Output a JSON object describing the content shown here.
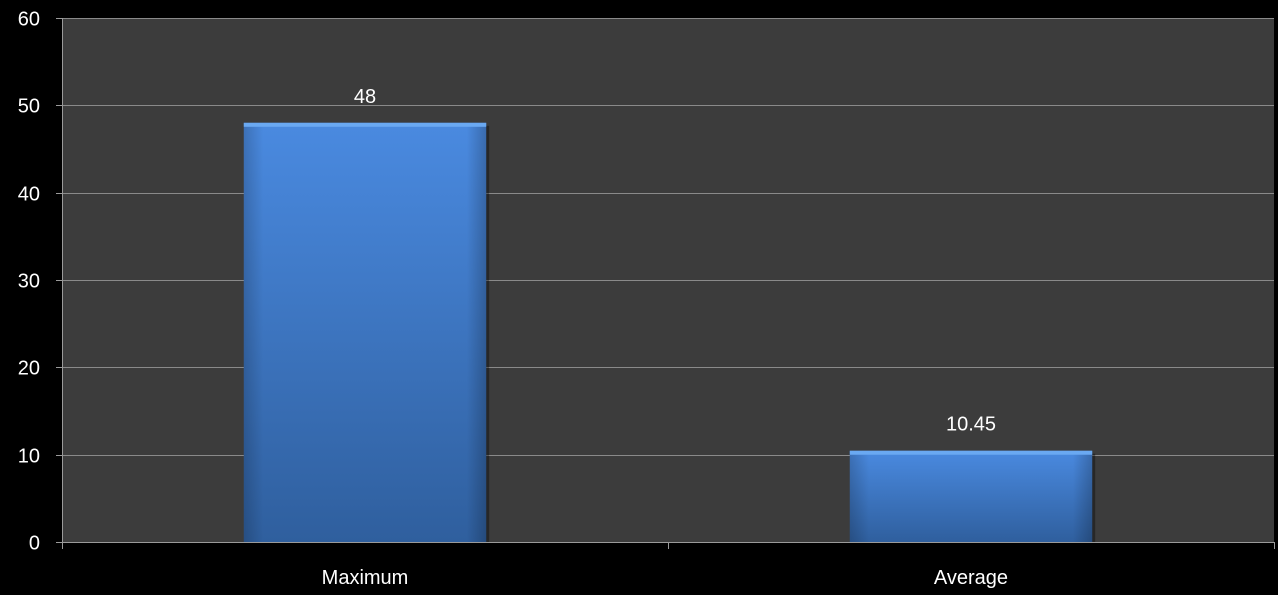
{
  "chart_data": {
    "type": "bar",
    "title": "",
    "xlabel": "",
    "ylabel": "",
    "categories": [
      "Maximum",
      "Average"
    ],
    "values": [
      48,
      10.45
    ],
    "value_labels": [
      "48",
      "10.45"
    ],
    "ylim": [
      0,
      60
    ],
    "yticks": [
      0,
      10,
      20,
      30,
      40,
      50,
      60
    ],
    "ytick_labels": [
      "0",
      "10",
      "20",
      "30",
      "40",
      "50",
      "60"
    ],
    "grid": true,
    "legend": "none",
    "colors": {
      "background": "#000000",
      "plot_area": "#3c3c3c",
      "gridline": "#8a8a8a",
      "axis": "#9a9a9a",
      "bar_top": "#4a8ae0",
      "bar_bottom": "#2f5f9e",
      "bar_highlight": "#6aa9f2",
      "text": "#ffffff"
    }
  }
}
